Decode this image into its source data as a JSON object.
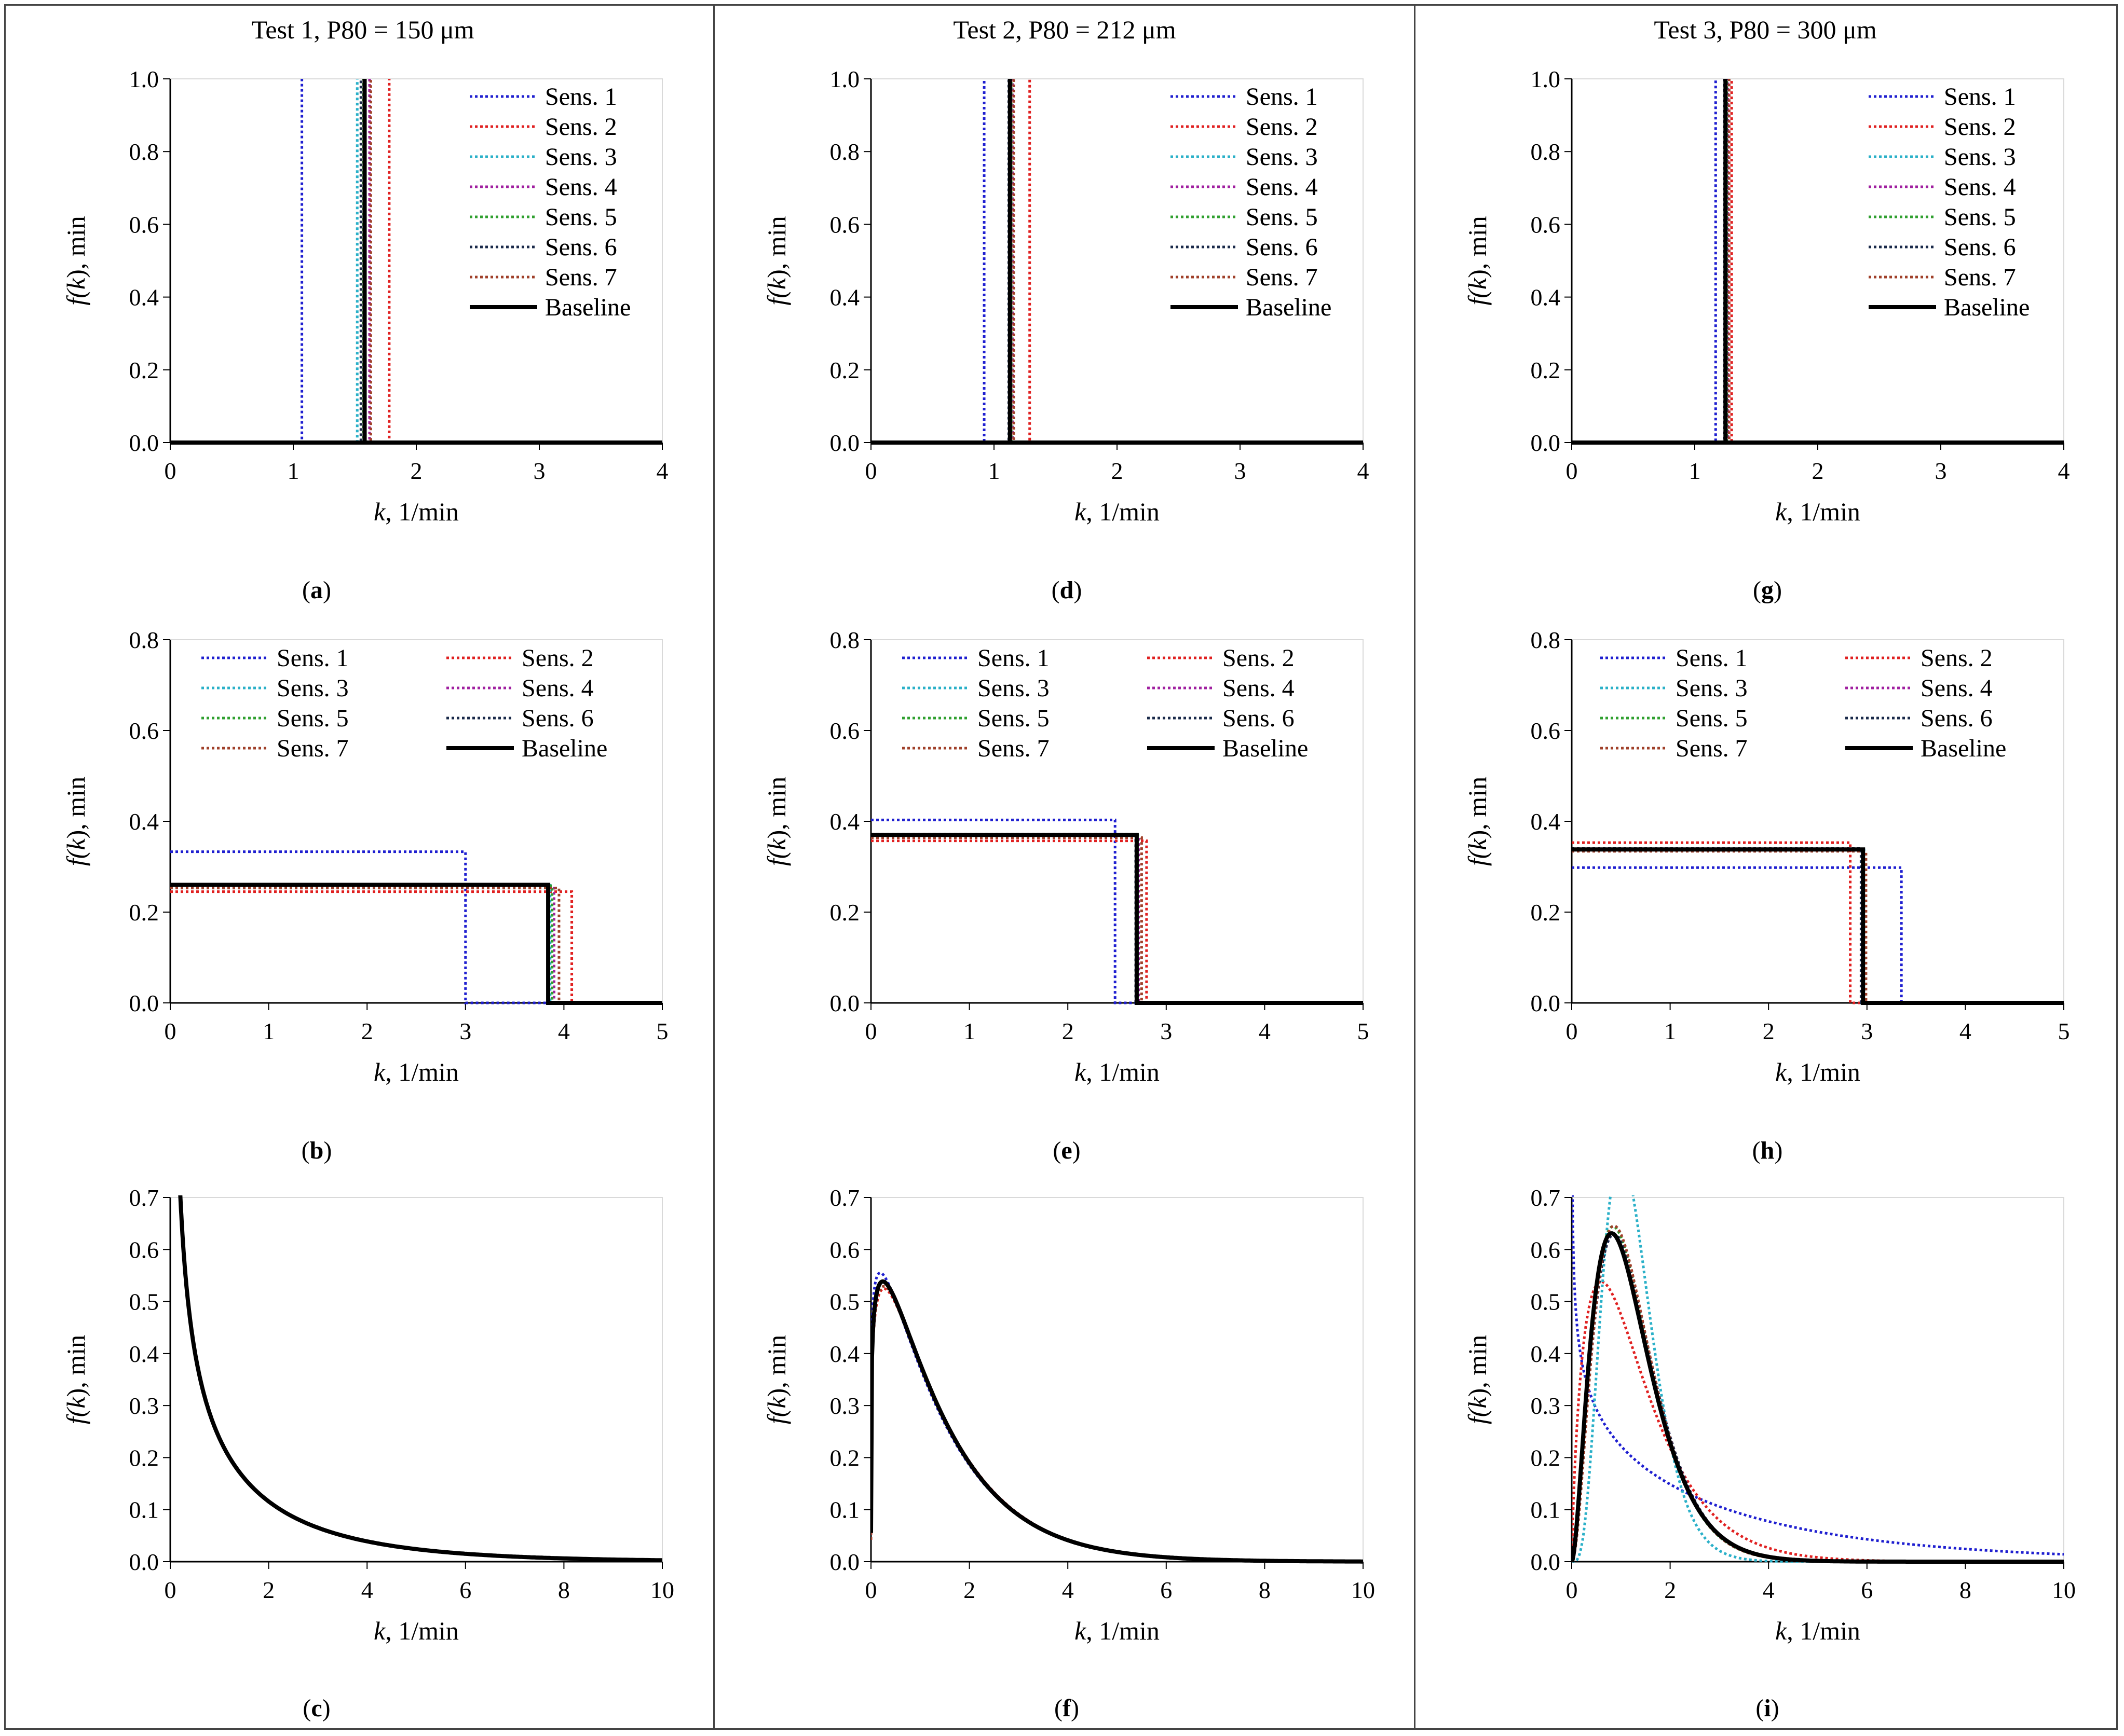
{
  "column_titles": [
    "Test 1, P80 = 150 μm",
    "Test 2, P80 = 212 μm",
    "Test 3, P80 = 300 μm"
  ],
  "panel_labels": [
    "a",
    "b",
    "c",
    "d",
    "e",
    "f",
    "g",
    "h",
    "i"
  ],
  "series_colors": {
    "Sens. 1": "#1f1fd0",
    "Sens. 2": "#e02020",
    "Sens. 3": "#2ab0c8",
    "Sens. 4": "#a020a0",
    "Sens. 5": "#30a030",
    "Sens. 6": "#1a2a4a",
    "Sens. 7": "#a0402a",
    "Baseline": "#000000"
  },
  "chart_data": [
    {
      "panel": "a",
      "type": "spike",
      "xlabel_italic": "k",
      "xlabel_rest": ", 1/min",
      "ylabel_pre": "f(",
      "ylabel_italic": "k",
      "ylabel_post": "), min",
      "xlim": [
        0,
        4
      ],
      "ylim": [
        0,
        1
      ],
      "xticks": [
        0,
        1,
        2,
        3,
        4
      ],
      "yticks": [
        0,
        0.2,
        0.4,
        0.6,
        0.8,
        1.0
      ],
      "ydecimals": 1,
      "legend_cols": 1,
      "series": [
        {
          "name": "Sens. 1",
          "k": 1.07
        },
        {
          "name": "Sens. 2",
          "k": 1.78
        },
        {
          "name": "Sens. 3",
          "k": 1.52
        },
        {
          "name": "Sens. 4",
          "k": 1.62
        },
        {
          "name": "Sens. 5",
          "k": 1.57
        },
        {
          "name": "Sens. 6",
          "k": 1.55
        },
        {
          "name": "Sens. 7",
          "k": 1.63
        },
        {
          "name": "Baseline",
          "k": 1.58
        }
      ]
    },
    {
      "panel": "b",
      "type": "uniform",
      "xlabel_italic": "k",
      "xlabel_rest": ", 1/min",
      "ylabel_pre": "f(",
      "ylabel_italic": "k",
      "ylabel_post": "), min",
      "xlim": [
        0,
        5
      ],
      "ylim": [
        0,
        0.8
      ],
      "xticks": [
        0,
        1,
        2,
        3,
        4,
        5
      ],
      "yticks": [
        0,
        0.2,
        0.4,
        0.6,
        0.8
      ],
      "ydecimals": 1,
      "legend_cols": 2,
      "series": [
        {
          "name": "Sens. 1",
          "kmax": 3.0,
          "f": 0.333
        },
        {
          "name": "Sens. 2",
          "kmax": 4.08,
          "f": 0.245
        },
        {
          "name": "Sens. 3",
          "kmax": 3.86,
          "f": 0.259
        },
        {
          "name": "Sens. 4",
          "kmax": 3.9,
          "f": 0.256
        },
        {
          "name": "Sens. 5",
          "kmax": 3.88,
          "f": 0.258
        },
        {
          "name": "Sens. 6",
          "kmax": 3.84,
          "f": 0.26
        },
        {
          "name": "Sens. 7",
          "kmax": 3.95,
          "f": 0.253
        },
        {
          "name": "Baseline",
          "kmax": 3.84,
          "f": 0.26
        }
      ]
    },
    {
      "panel": "c",
      "type": "gamma",
      "xlabel_italic": "k",
      "xlabel_rest": ", 1/min",
      "ylabel_pre": "f(",
      "ylabel_italic": "k",
      "ylabel_post": "), min",
      "xlim": [
        0,
        10
      ],
      "ylim": [
        0,
        0.7
      ],
      "xticks": [
        0,
        2,
        4,
        6,
        8,
        10
      ],
      "yticks": [
        0,
        0.1,
        0.2,
        0.3,
        0.4,
        0.5,
        0.6,
        0.7
      ],
      "ydecimals": 1,
      "legend_cols": 1,
      "series": [
        {
          "name": "Sens. 1",
          "alpha": 0.5,
          "beta": 2.7
        },
        {
          "name": "Sens. 2",
          "alpha": 0.5,
          "beta": 2.72
        },
        {
          "name": "Sens. 3",
          "alpha": 0.5,
          "beta": 2.68
        },
        {
          "name": "Sens. 4",
          "alpha": 0.5,
          "beta": 2.7
        },
        {
          "name": "Sens. 5",
          "alpha": 0.5,
          "beta": 2.7
        },
        {
          "name": "Sens. 6",
          "alpha": 0.5,
          "beta": 2.7
        },
        {
          "name": "Sens. 7",
          "alpha": 0.5,
          "beta": 2.71
        },
        {
          "name": "Baseline",
          "alpha": 0.5,
          "beta": 2.7
        }
      ]
    },
    {
      "panel": "d",
      "type": "spike",
      "xlabel_italic": "k",
      "xlabel_rest": ", 1/min",
      "ylabel_pre": "f(",
      "ylabel_italic": "k",
      "ylabel_post": "), min",
      "xlim": [
        0,
        4
      ],
      "ylim": [
        0,
        1
      ],
      "xticks": [
        0,
        1,
        2,
        3,
        4
      ],
      "yticks": [
        0,
        0.2,
        0.4,
        0.6,
        0.8,
        1.0
      ],
      "ydecimals": 1,
      "legend_cols": 1,
      "series": [
        {
          "name": "Sens. 1",
          "k": 0.92
        },
        {
          "name": "Sens. 2",
          "k": 1.29
        },
        {
          "name": "Sens. 3",
          "k": 1.13
        },
        {
          "name": "Sens. 4",
          "k": 1.15
        },
        {
          "name": "Sens. 5",
          "k": 1.14
        },
        {
          "name": "Sens. 6",
          "k": 1.12
        },
        {
          "name": "Sens. 7",
          "k": 1.16
        },
        {
          "name": "Baseline",
          "k": 1.13
        }
      ]
    },
    {
      "panel": "e",
      "type": "uniform",
      "xlabel_italic": "k",
      "xlabel_rest": ", 1/min",
      "ylabel_pre": "f(",
      "ylabel_italic": "k",
      "ylabel_post": "), min",
      "xlim": [
        0,
        5
      ],
      "ylim": [
        0,
        0.8
      ],
      "xticks": [
        0,
        1,
        2,
        3,
        4,
        5
      ],
      "yticks": [
        0,
        0.2,
        0.4,
        0.6,
        0.8
      ],
      "ydecimals": 1,
      "legend_cols": 2,
      "series": [
        {
          "name": "Sens. 1",
          "kmax": 2.48,
          "f": 0.403
        },
        {
          "name": "Sens. 2",
          "kmax": 2.8,
          "f": 0.357
        },
        {
          "name": "Sens. 3",
          "kmax": 2.7,
          "f": 0.37
        },
        {
          "name": "Sens. 4",
          "kmax": 2.72,
          "f": 0.368
        },
        {
          "name": "Sens. 5",
          "kmax": 2.71,
          "f": 0.369
        },
        {
          "name": "Sens. 6",
          "kmax": 2.69,
          "f": 0.372
        },
        {
          "name": "Sens. 7",
          "kmax": 2.75,
          "f": 0.364
        },
        {
          "name": "Baseline",
          "kmax": 2.7,
          "f": 0.37
        }
      ]
    },
    {
      "panel": "f",
      "type": "gamma",
      "xlabel_italic": "k",
      "xlabel_rest": ", 1/min",
      "ylabel_pre": "f(",
      "ylabel_italic": "k",
      "ylabel_post": "), min",
      "xlim": [
        0,
        10
      ],
      "ylim": [
        0,
        0.7
      ],
      "xticks": [
        0,
        2,
        4,
        6,
        8,
        10
      ],
      "yticks": [
        0,
        0.1,
        0.2,
        0.3,
        0.4,
        0.5,
        0.6,
        0.7
      ],
      "ydecimals": 1,
      "legend_cols": 1,
      "series": [
        {
          "name": "Sens. 1",
          "alpha": 1.15,
          "beta": 1.25
        },
        {
          "name": "Sens. 2",
          "alpha": 1.22,
          "beta": 1.2
        },
        {
          "name": "Sens. 3",
          "alpha": 1.2,
          "beta": 1.2
        },
        {
          "name": "Sens. 4",
          "alpha": 1.2,
          "beta": 1.2
        },
        {
          "name": "Sens. 5",
          "alpha": 1.2,
          "beta": 1.2
        },
        {
          "name": "Sens. 6",
          "alpha": 1.2,
          "beta": 1.2
        },
        {
          "name": "Sens. 7",
          "alpha": 1.22,
          "beta": 1.19
        },
        {
          "name": "Baseline",
          "alpha": 1.2,
          "beta": 1.2
        }
      ]
    },
    {
      "panel": "g",
      "type": "spike",
      "xlabel_italic": "k",
      "xlabel_rest": ", 1/min",
      "ylabel_pre": "f(",
      "ylabel_italic": "k",
      "ylabel_post": "), min",
      "xlim": [
        0,
        4
      ],
      "ylim": [
        0,
        1
      ],
      "xticks": [
        0,
        1,
        2,
        3,
        4
      ],
      "yticks": [
        0,
        0.2,
        0.4,
        0.6,
        0.8,
        1.0
      ],
      "ydecimals": 1,
      "legend_cols": 1,
      "series": [
        {
          "name": "Sens. 1",
          "k": 1.17
        },
        {
          "name": "Sens. 2",
          "k": 1.3
        },
        {
          "name": "Sens. 3",
          "k": 1.25
        },
        {
          "name": "Sens. 4",
          "k": 1.27
        },
        {
          "name": "Sens. 5",
          "k": 1.26
        },
        {
          "name": "Sens. 6",
          "k": 1.24
        },
        {
          "name": "Sens. 7",
          "k": 1.28
        },
        {
          "name": "Baseline",
          "k": 1.25
        }
      ]
    },
    {
      "panel": "h",
      "type": "uniform",
      "xlabel_italic": "k",
      "xlabel_rest": ", 1/min",
      "ylabel_pre": "f(",
      "ylabel_italic": "k",
      "ylabel_post": "), min",
      "xlim": [
        0,
        5
      ],
      "ylim": [
        0,
        0.8
      ],
      "xticks": [
        0,
        1,
        2,
        3,
        4,
        5
      ],
      "yticks": [
        0,
        0.2,
        0.4,
        0.6,
        0.8
      ],
      "ydecimals": 1,
      "legend_cols": 2,
      "series": [
        {
          "name": "Sens. 1",
          "kmax": 3.35,
          "f": 0.298
        },
        {
          "name": "Sens. 2",
          "kmax": 2.83,
          "f": 0.353
        },
        {
          "name": "Sens. 3",
          "kmax": 2.97,
          "f": 0.337
        },
        {
          "name": "Sens. 4",
          "kmax": 2.95,
          "f": 0.339
        },
        {
          "name": "Sens. 5",
          "kmax": 2.96,
          "f": 0.338
        },
        {
          "name": "Sens. 6",
          "kmax": 2.94,
          "f": 0.34
        },
        {
          "name": "Sens. 7",
          "kmax": 2.99,
          "f": 0.334
        },
        {
          "name": "Baseline",
          "kmax": 2.96,
          "f": 0.338
        }
      ]
    },
    {
      "panel": "i",
      "type": "gamma",
      "xlabel_italic": "k",
      "xlabel_rest": ", 1/min",
      "ylabel_pre": "f(",
      "ylabel_italic": "k",
      "ylabel_post": "), min",
      "xlim": [
        0,
        10
      ],
      "ylim": [
        0,
        0.7
      ],
      "xticks": [
        0,
        2,
        4,
        6,
        8,
        10
      ],
      "yticks": [
        0,
        0.1,
        0.2,
        0.3,
        0.4,
        0.5,
        0.6,
        0.7
      ],
      "ydecimals": 1,
      "legend_cols": 1,
      "series": [
        {
          "name": "Sens. 1",
          "alpha": 0.78,
          "beta": 4.0
        },
        {
          "name": "Sens. 2",
          "alpha": 1.8,
          "beta": 0.75
        },
        {
          "name": "Sens. 3",
          "alpha": 5.0,
          "beta": 0.25
        },
        {
          "name": "Sens. 4",
          "alpha": 3.0,
          "beta": 0.43
        },
        {
          "name": "Sens. 5",
          "alpha": 3.0,
          "beta": 0.42
        },
        {
          "name": "Sens. 6",
          "alpha": 3.0,
          "beta": 0.43
        },
        {
          "name": "Sens. 7",
          "alpha": 3.1,
          "beta": 0.41
        },
        {
          "name": "Baseline",
          "alpha": 2.8,
          "beta": 0.45
        }
      ]
    }
  ]
}
